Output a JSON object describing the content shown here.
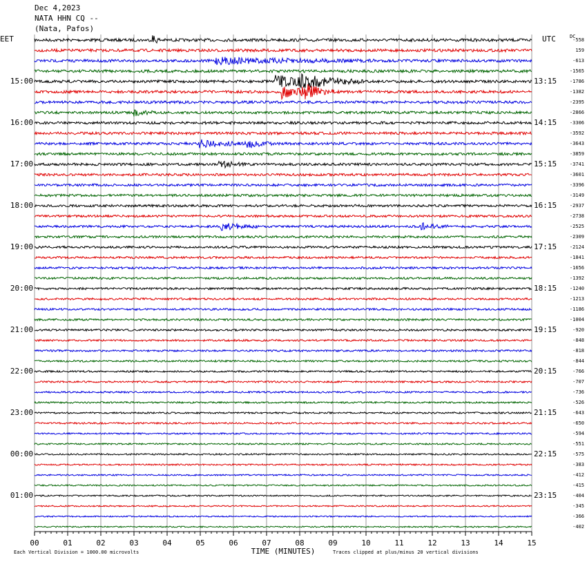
{
  "chart_data": {
    "type": "helicorder",
    "title": [
      "Dec 4,2023",
      "NATA HHN CQ --",
      "(Nata, Pafos)"
    ],
    "left_zone": "EET",
    "right_zone": "UTC",
    "offset_label": "DC",
    "left_labels": [
      "15:00",
      "16:00",
      "17:00",
      "18:00",
      "19:00",
      "20:00",
      "21:00",
      "22:00",
      "23:00",
      "00:00",
      "01:00"
    ],
    "right_labels": [
      "13:15",
      "14:15",
      "15:15",
      "16:15",
      "17:15",
      "18:15",
      "19:15",
      "20:15",
      "21:15",
      "22:15",
      "23:15"
    ],
    "offsets": [
      -558,
      159,
      -613,
      -1565,
      -1786,
      -1382,
      -2395,
      -2866,
      -3306,
      -3592,
      -3643,
      -3859,
      -3741,
      -3601,
      -3396,
      -3149,
      -2937,
      -2738,
      -2525,
      -2309,
      -2124,
      -1841,
      -1656,
      -1392,
      -1240,
      -1213,
      -1186,
      -1004,
      -920,
      -848,
      -818,
      -844,
      -766,
      -707,
      -736,
      -526,
      -643,
      -650,
      -594,
      -551,
      -575,
      -383,
      -412,
      -415,
      -404,
      -345,
      -366,
      -402
    ],
    "colors": [
      "#000000",
      "#e00000",
      "#0000e0",
      "#006400"
    ],
    "xlim": [
      0,
      15
    ],
    "xticks": [
      {
        "value": 0,
        "label": "00"
      },
      {
        "value": 1,
        "label": "01"
      },
      {
        "value": 2,
        "label": "02"
      },
      {
        "value": 3,
        "label": "03"
      },
      {
        "value": 4,
        "label": "04"
      },
      {
        "value": 5,
        "label": "05"
      },
      {
        "value": 6,
        "label": "06"
      },
      {
        "value": 7,
        "label": "07"
      },
      {
        "value": 8,
        "label": "08"
      },
      {
        "value": 9,
        "label": "09"
      },
      {
        "value": 10,
        "label": "10"
      },
      {
        "value": 11,
        "label": "11"
      },
      {
        "value": 12,
        "label": "12"
      },
      {
        "value": 13,
        "label": "13"
      },
      {
        "value": 14,
        "label": "14"
      },
      {
        "value": 15,
        "label": "15"
      }
    ],
    "xlabel": "TIME (MINUTES)",
    "scale_note": "Each Vertical Division = 1000.00 microvolts",
    "clip_note": "Traces clipped at plus/minus 20 vertical divisions"
  }
}
